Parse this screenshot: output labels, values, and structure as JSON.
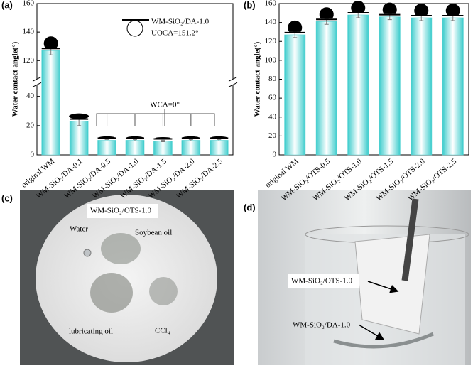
{
  "charts": [
    {
      "type": "bar",
      "panel_label": "(a)",
      "ylabel": "Water contact angle(°)",
      "categories": [
        "original WM",
        "WM-SiO₂/DA-0.1",
        "WM-SiO₂/DA-0.5",
        "WM-SiO₂/DA-1.0",
        "WM-SiO₂/DA-1.5",
        "WM-SiO₂/DA-2.0",
        "WM-SiO₂/DA-2.5"
      ],
      "values": [
        127,
        23,
        10,
        10,
        9.5,
        10,
        10
      ],
      "errors": [
        3,
        3,
        0.5,
        0.5,
        0.5,
        0.5,
        0.5
      ],
      "color": "#4fd0d0",
      "ylim": [
        0,
        160
      ],
      "ybreak": [
        45,
        110
      ],
      "yticks": [
        0,
        20,
        40,
        120,
        140,
        160
      ],
      "annotations": [
        "WM-SiO₂/DA-1.0",
        "UOCA=151.2°",
        "WCA=0°"
      ]
    },
    {
      "type": "bar",
      "panel_label": "(b)",
      "ylabel": "Water contact angle(°)",
      "categories": [
        "original WM",
        "WM-SiO₂/OTS-0.5",
        "WM-SiO₂/OTS-1.0",
        "WM-SiO₂/OTS-1.5",
        "WM-SiO₂/OTS-2.0",
        "WM-SiO₂/OTS-2.5"
      ],
      "values": [
        127,
        141,
        148,
        146,
        145,
        145
      ],
      "errors": [
        3,
        3,
        3,
        3,
        3,
        3
      ],
      "color": "#4fd0d0",
      "ylim": [
        0,
        160
      ],
      "yticks": [
        0,
        20,
        40,
        60,
        80,
        100,
        120,
        140,
        160
      ]
    }
  ],
  "photos": [
    {
      "panel_label": "(c)",
      "labels": [
        "WM-SiO₂/OTS-1.0",
        "Water",
        "Soybean oil",
        "lubricating oil",
        "CCl₄"
      ]
    },
    {
      "panel_label": "(d)",
      "labels": [
        "WM-SiO₂/OTS-1.0",
        "WM-SiO₂/DA-1.0"
      ]
    }
  ]
}
